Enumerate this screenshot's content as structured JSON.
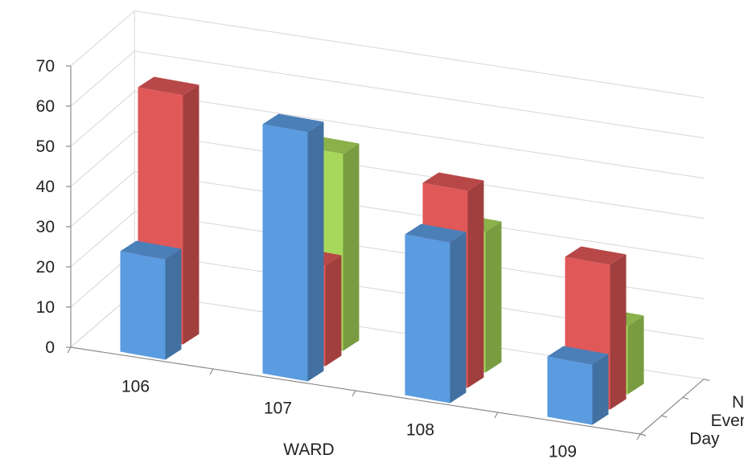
{
  "chart_data": {
    "type": "bar",
    "subtype": "3d-column",
    "categories": [
      "106",
      "107",
      "108",
      "109"
    ],
    "series": [
      {
        "name": "Day",
        "values": [
          25,
          62,
          40,
          15
        ],
        "color": "#5b9be0"
      },
      {
        "name": "Evening",
        "values": [
          62,
          25,
          49,
          36
        ],
        "color": "#e05858"
      },
      {
        "name": "Night",
        "values": [
          0,
          49,
          35,
          17
        ],
        "color": "#a8d85a"
      }
    ],
    "xlabel": "WARD",
    "ylabel": "",
    "ylim": [
      0,
      70
    ],
    "yticks": [
      "0",
      "10",
      "20",
      "30",
      "40",
      "50",
      "60",
      "70"
    ],
    "grid": true,
    "legend": "none"
  }
}
